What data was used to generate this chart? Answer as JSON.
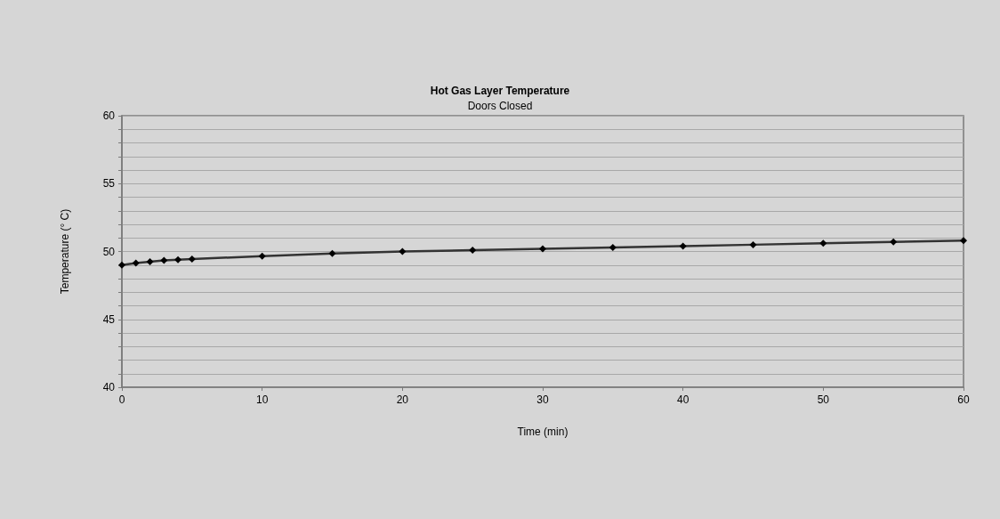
{
  "chart_data": {
    "type": "line",
    "title": "Hot Gas Layer Temperature",
    "subtitle": "Doors Closed",
    "xlabel": "Time (min)",
    "ylabel": "Temperature (° C)",
    "x": [
      0,
      1,
      2,
      3,
      4,
      5,
      10,
      15,
      20,
      25,
      30,
      35,
      40,
      45,
      50,
      55,
      60
    ],
    "series": [
      {
        "color": "#333333",
        "values": [
          49.0,
          49.15,
          49.25,
          49.35,
          49.4,
          49.45,
          49.65,
          49.85,
          50.0,
          50.1,
          50.2,
          50.3,
          50.4,
          50.5,
          50.6,
          50.7,
          50.8
        ]
      }
    ],
    "xlim": [
      0,
      60
    ],
    "xticks": [
      0,
      10,
      20,
      30,
      40,
      50,
      60
    ],
    "ylim": [
      40,
      60
    ],
    "yticks": [
      40,
      {
        "value": 41,
        "label": null
      },
      {
        "value": 42,
        "label": null
      },
      {
        "value": 43,
        "label": null
      },
      {
        "value": 44,
        "label": null
      },
      45,
      {
        "value": 46,
        "label": null
      },
      {
        "value": 47,
        "label": null
      },
      {
        "value": 48,
        "label": null
      },
      {
        "value": 49,
        "label": null
      },
      50,
      {
        "value": 51,
        "label": null
      },
      {
        "value": 52,
        "label": null
      },
      {
        "value": 53,
        "label": null
      },
      {
        "value": 54,
        "label": null
      },
      55,
      {
        "value": 56,
        "label": null
      },
      {
        "value": 57,
        "label": null
      },
      {
        "value": 58,
        "label": null
      },
      {
        "value": 59,
        "label": null
      },
      60
    ],
    "grid": "y",
    "marker": "diamond",
    "line_style": "solid"
  }
}
